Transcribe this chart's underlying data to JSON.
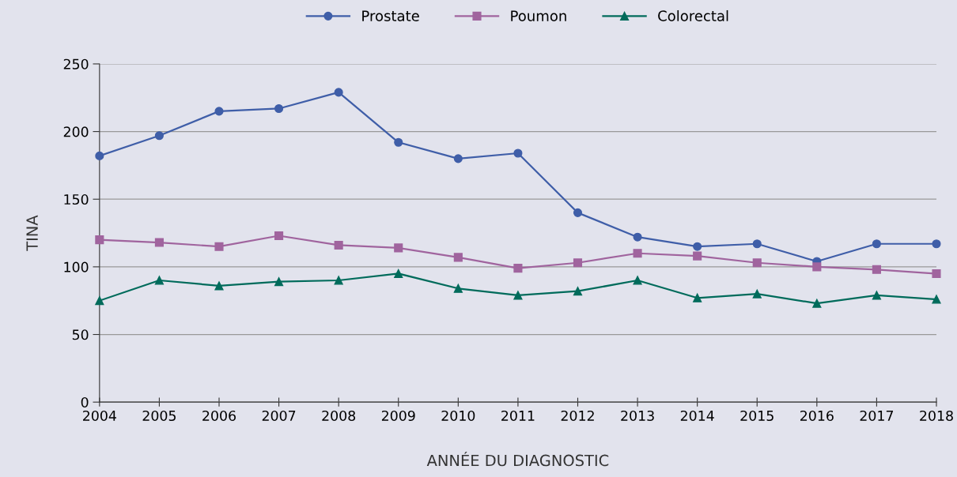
{
  "chart_data": {
    "type": "line",
    "xlabel": "ANNÉE DU DIAGNOSTIC",
    "ylabel": "TINA",
    "x": [
      2004,
      2005,
      2006,
      2007,
      2008,
      2009,
      2010,
      2011,
      2012,
      2013,
      2014,
      2015,
      2016,
      2017,
      2018
    ],
    "series": [
      {
        "name": "Prostate",
        "color": "#3f5ea8",
        "marker": "circle",
        "values": [
          182,
          197,
          215,
          217,
          229,
          192,
          180,
          184,
          140,
          122,
          115,
          117,
          104,
          117,
          117
        ]
      },
      {
        "name": "Poumon",
        "color": "#a0649e",
        "marker": "square",
        "values": [
          120,
          118,
          115,
          123,
          116,
          114,
          107,
          99,
          103,
          110,
          108,
          103,
          100,
          98,
          95
        ]
      },
      {
        "name": "Colorectal",
        "color": "#006b5b",
        "marker": "triangle",
        "values": [
          75,
          90,
          86,
          89,
          90,
          95,
          84,
          79,
          82,
          90,
          77,
          80,
          73,
          79,
          76
        ]
      }
    ],
    "xlim": [
      2004,
      2018
    ],
    "xticks": [
      2004,
      2005,
      2006,
      2007,
      2008,
      2009,
      2010,
      2011,
      2012,
      2013,
      2014,
      2015,
      2016,
      2017,
      2018
    ],
    "ylim": [
      0,
      250
    ],
    "yticks": [
      0,
      50,
      100,
      150,
      200,
      250
    ],
    "grid": "y",
    "legend": "top",
    "line_style": "solid"
  }
}
